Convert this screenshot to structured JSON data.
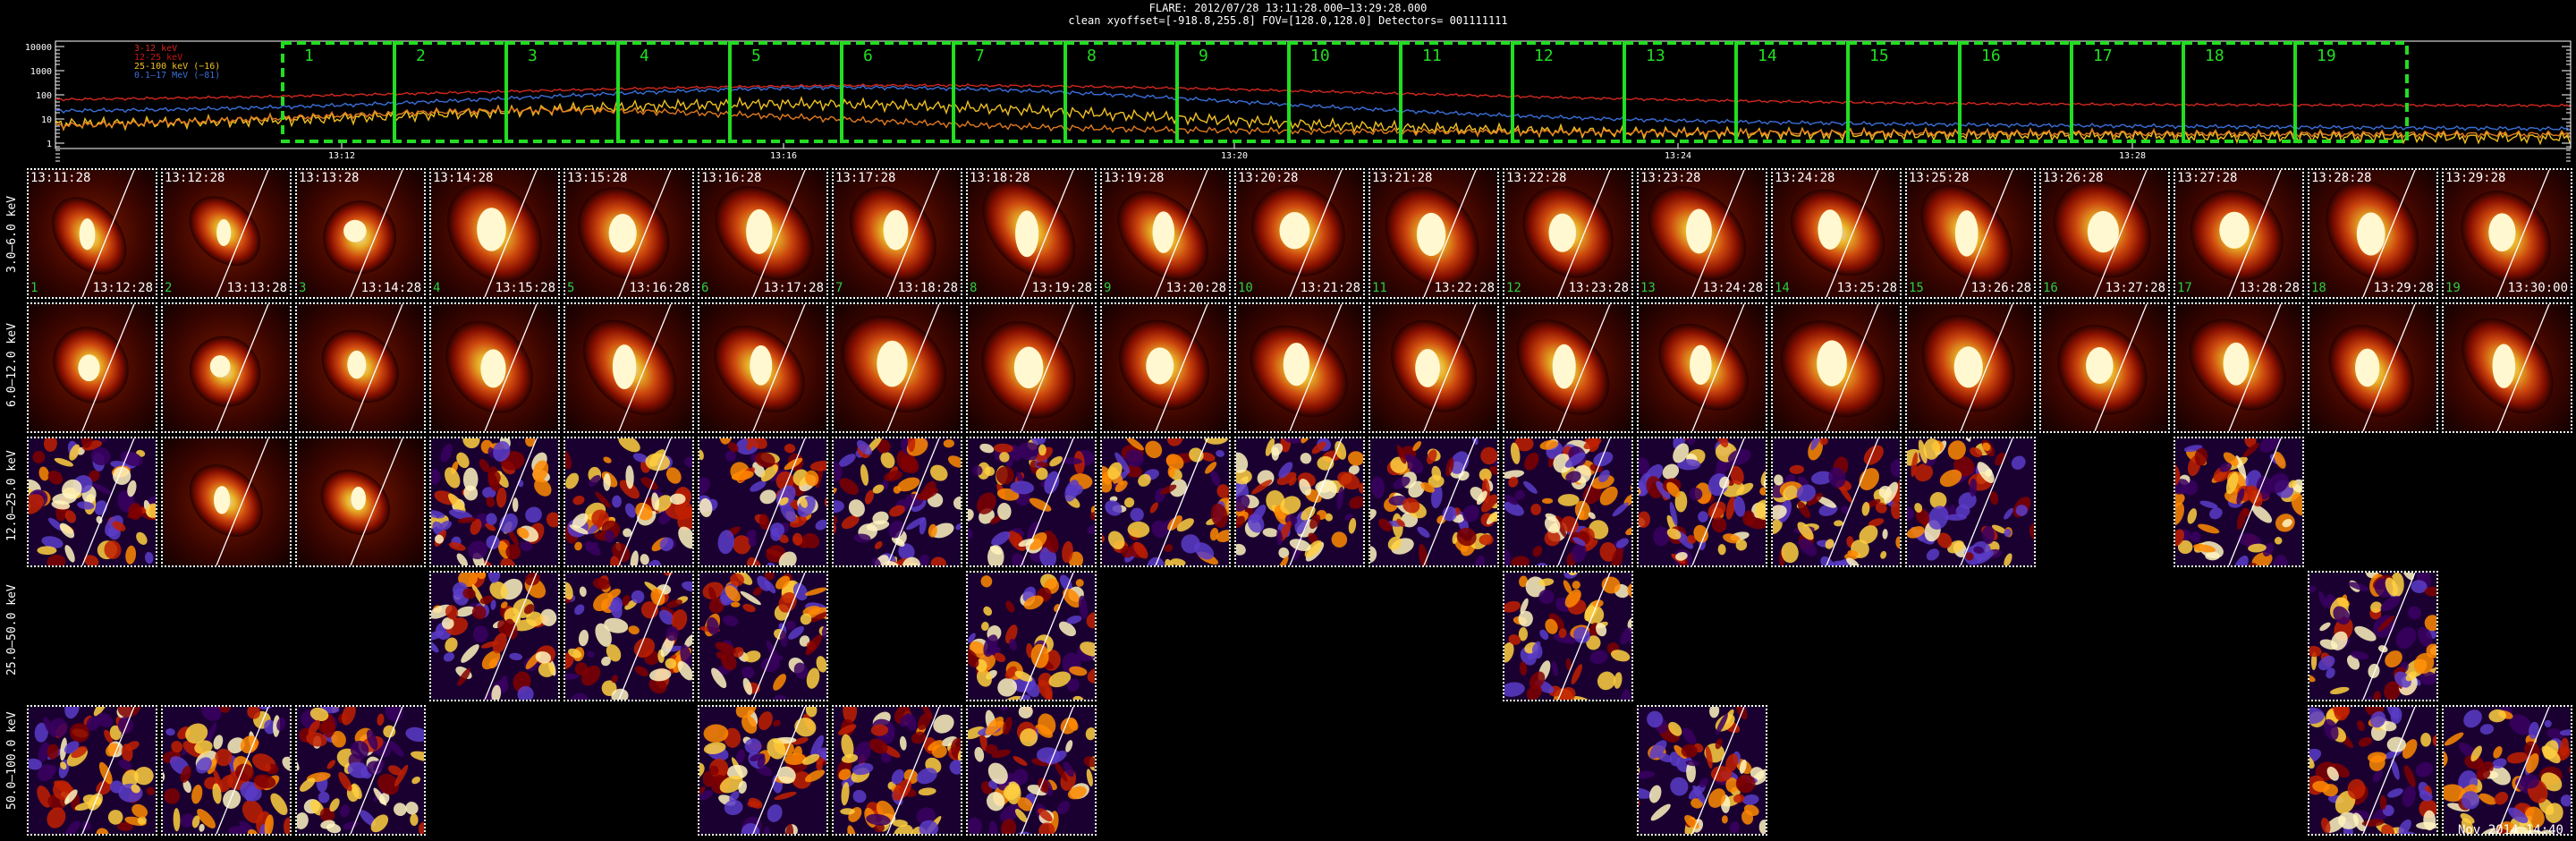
{
  "header": {
    "line1": "FLARE: 2012/07/28 13:11:28.000–13:29:28.000",
    "line2": "clean    xyoffset=[-918.8,255.8]   FOV=[128.0,128.0]   Detectors= 001111111"
  },
  "lightcurve": {
    "yticks": [
      "10000",
      "1000",
      "100",
      "10",
      "1"
    ],
    "xticks": [
      "13:12",
      "13:16",
      "13:20",
      "13:24",
      "13:28"
    ],
    "legend": [
      {
        "label": "3-12 keV",
        "color": "#d0281e"
      },
      {
        "label": "12-25 keV",
        "color": "#c51414"
      },
      {
        "label": "25-100 keV (−16)",
        "color": "#f0c020"
      },
      {
        "label": "0.1–17 MeV (−81)",
        "color": "#3a6fd8"
      }
    ],
    "intervals": [
      "1",
      "2",
      "3",
      "4",
      "5",
      "6",
      "7",
      "8",
      "9",
      "10",
      "11",
      "12",
      "13",
      "14",
      "15",
      "16",
      "17",
      "18",
      "19"
    ],
    "interval_color": "#22dd22"
  },
  "energy_bands": [
    "3.0–6.0 keV",
    "6.0–12.0 keV",
    "12.0–25.0 keV",
    "25.0–50.0 keV",
    "50.0–100.0 keV"
  ],
  "row1_start_times": [
    "13:11:28",
    "13:12:28",
    "13:13:28",
    "13:14:28",
    "13:15:28",
    "13:16:28",
    "13:17:28",
    "13:18:28",
    "13:19:28",
    "13:20:28",
    "13:21:28",
    "13:22:28",
    "13:23:28",
    "13:24:28",
    "13:25:28",
    "13:26:28",
    "13:27:28",
    "13:28:28",
    "13:29:28"
  ],
  "row1_end_times": [
    "13:12:28",
    "13:13:28",
    "13:14:28",
    "13:15:28",
    "13:16:28",
    "13:17:28",
    "13:18:28",
    "13:19:28",
    "13:20:28",
    "13:21:28",
    "13:22:28",
    "13:23:28",
    "13:24:28",
    "13:25:28",
    "13:26:28",
    "13:27:28",
    "13:28:28",
    "13:29:28",
    "13:30:00"
  ],
  "row1_numbers": [
    "1",
    "2",
    "3",
    "4",
    "5",
    "6",
    "7",
    "8",
    "9",
    "10",
    "11",
    "12",
    "13",
    "14",
    "15",
    "16",
    "17",
    "18",
    "19"
  ],
  "panels_present": {
    "row3": [
      0,
      1,
      2,
      3,
      4,
      5,
      6,
      7,
      8,
      9,
      10,
      11,
      12,
      13,
      14,
      16
    ],
    "row4": [
      3,
      4,
      5,
      7,
      11,
      17
    ],
    "row5": [
      0,
      1,
      2,
      5,
      6,
      7,
      12,
      17,
      18
    ]
  },
  "footer": "Nov 2014 14:40"
}
